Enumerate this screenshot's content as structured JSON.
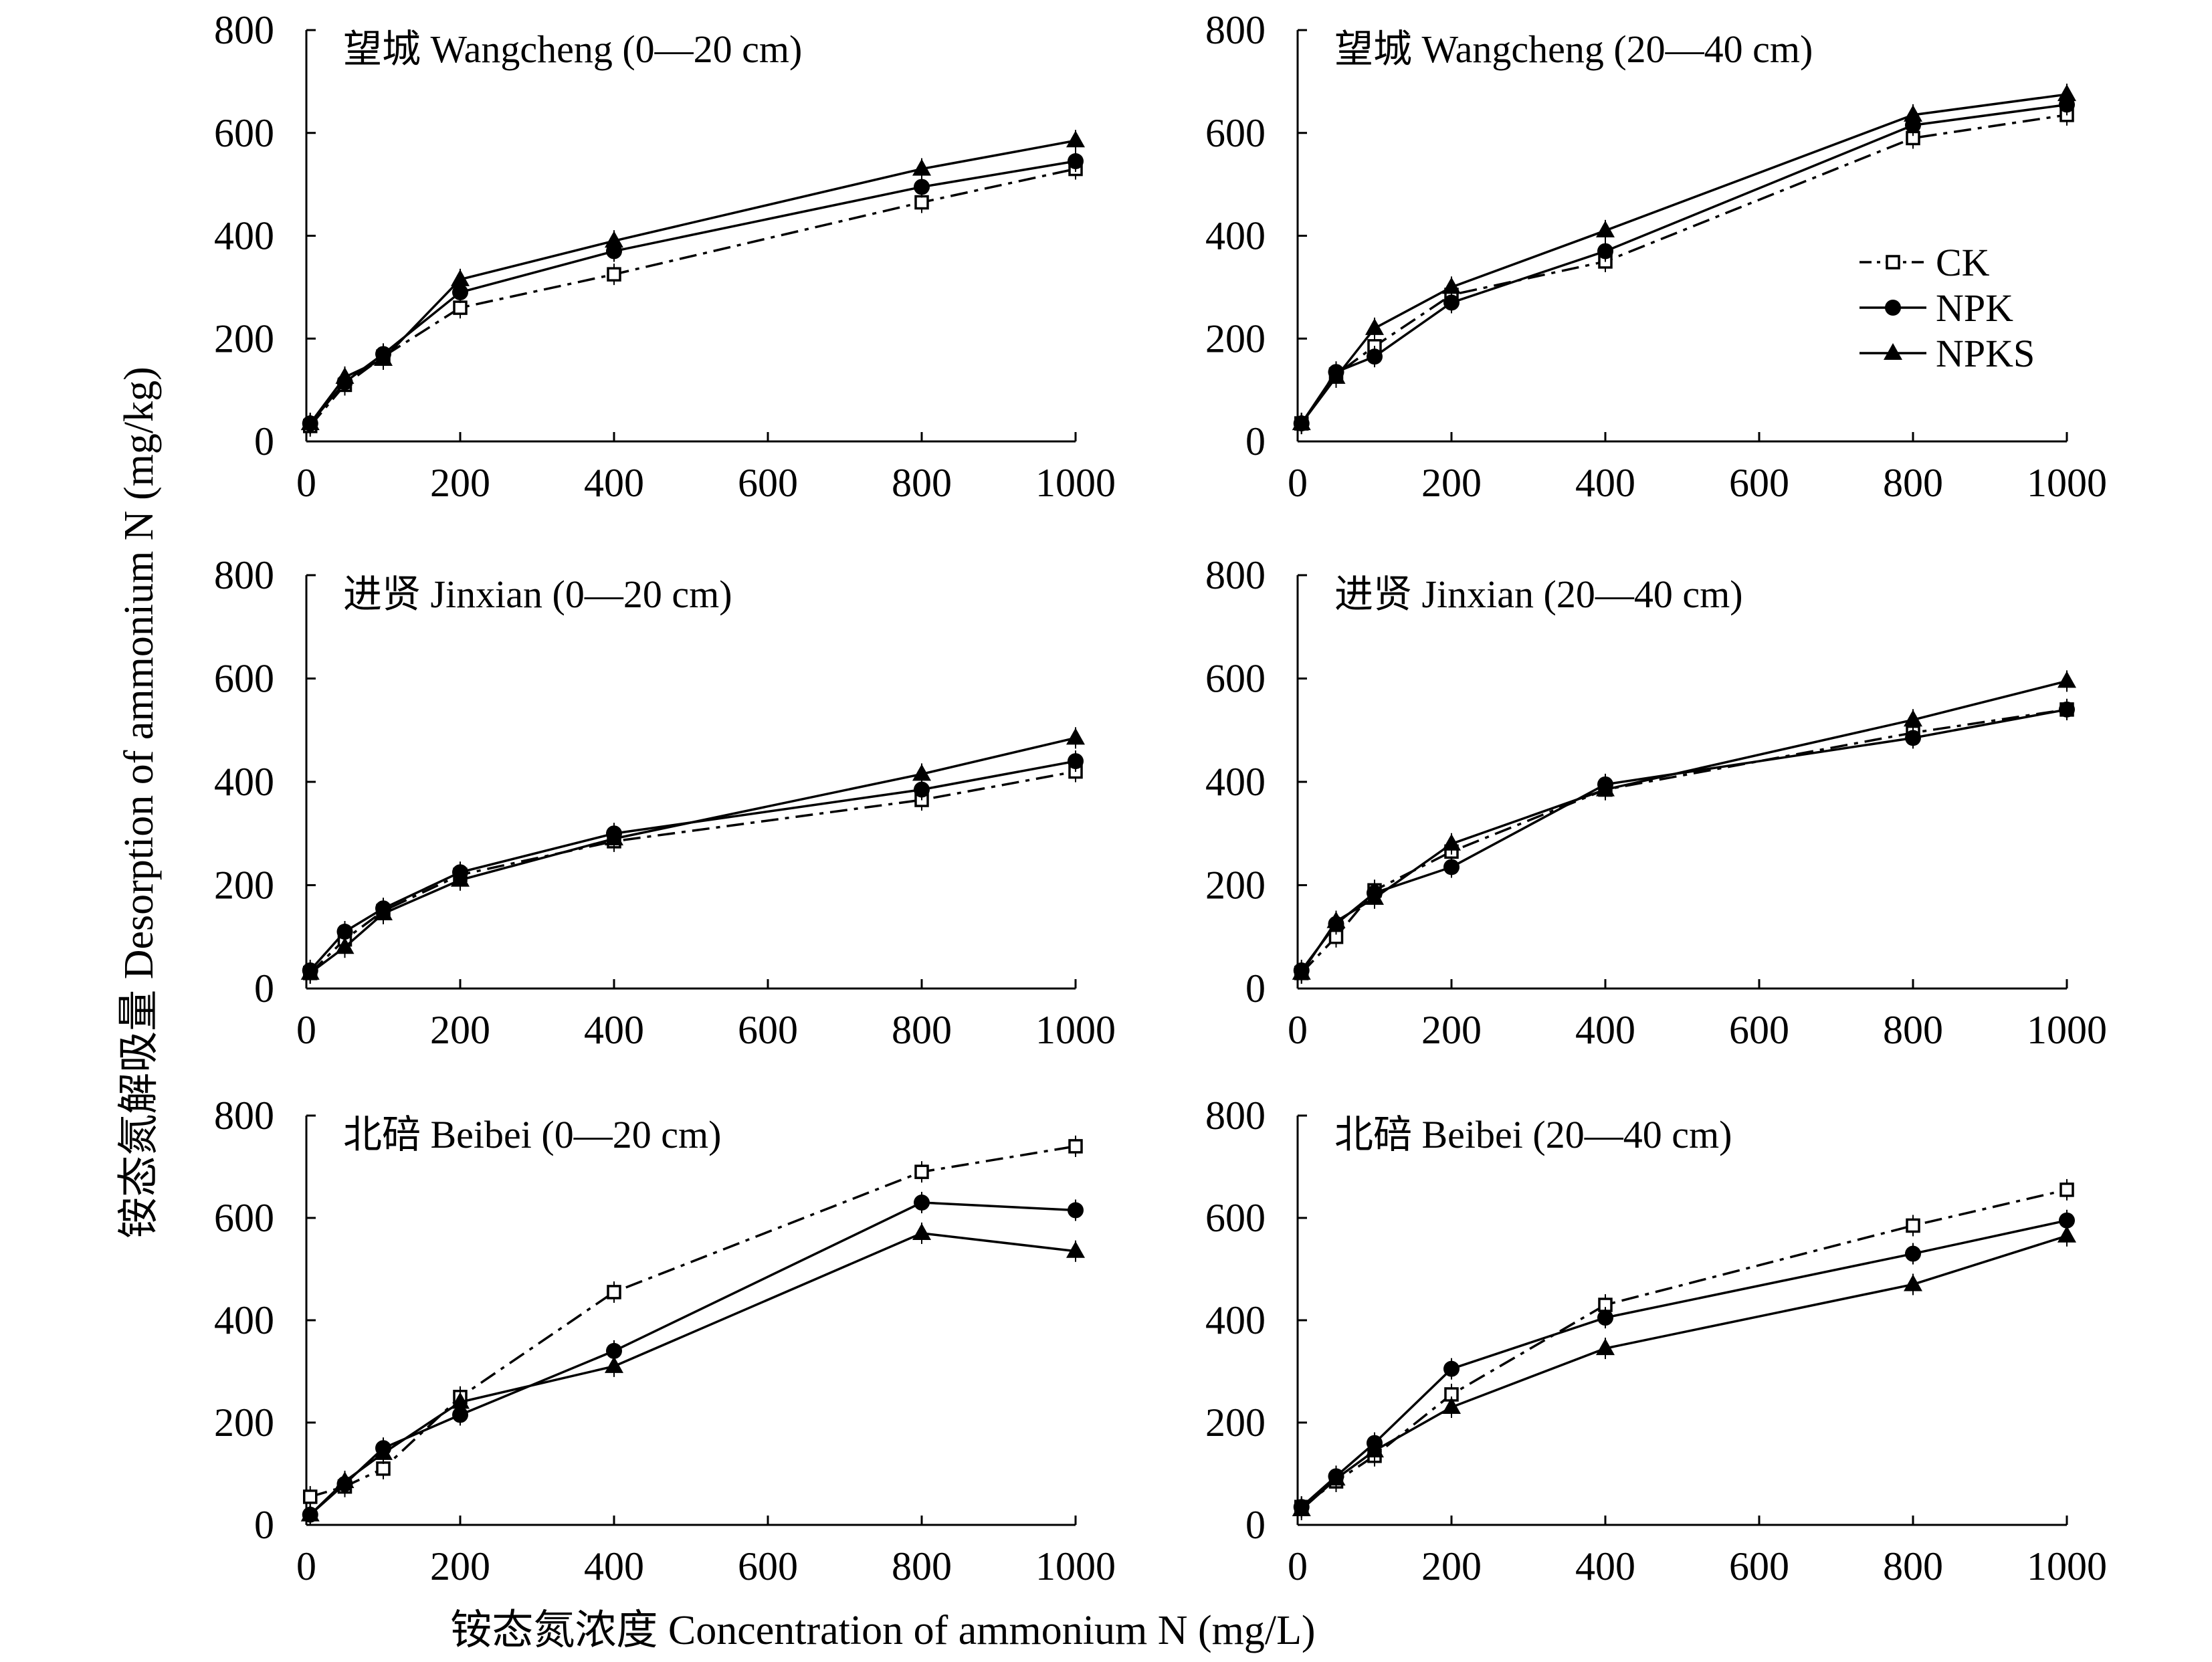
{
  "figure": {
    "ylabel": "铵态氮解吸量 Desorption of ammonium N (mg/kg)",
    "xlabel": "铵态氮浓度 Concentration of ammonium N (mg/L)"
  },
  "legend": [
    {
      "name": "CK",
      "marker": "square-open",
      "line": "dashdot"
    },
    {
      "name": "NPK",
      "marker": "circle-filled",
      "line": "solid"
    },
    {
      "name": "NPKS",
      "marker": "triangle-filled",
      "line": "solid"
    }
  ],
  "colors": {
    "ink": "#000000",
    "background": "#ffffff"
  },
  "chart_data": [
    {
      "type": "line",
      "title": "望城 Wangcheng (0—20 cm)",
      "x": [
        5,
        50,
        100,
        200,
        400,
        800,
        1000
      ],
      "xticks": [
        "0",
        "200",
        "400",
        "600",
        "800",
        "1000"
      ],
      "yticks": [
        "0",
        "200",
        "400",
        "600",
        "800"
      ],
      "xlim": [
        0,
        1000
      ],
      "ylim": [
        0,
        800
      ],
      "series": [
        {
          "name": "CK",
          "values": [
            30,
            110,
            165,
            260,
            325,
            465,
            530
          ]
        },
        {
          "name": "NPK",
          "values": [
            35,
            115,
            170,
            290,
            370,
            495,
            545
          ]
        },
        {
          "name": "NPKS",
          "values": [
            35,
            125,
            160,
            315,
            390,
            530,
            585
          ]
        }
      ]
    },
    {
      "type": "line",
      "title": "望城 Wangcheng (20—40 cm)",
      "x": [
        5,
        50,
        100,
        200,
        400,
        800,
        1000
      ],
      "xticks": [
        "0",
        "200",
        "400",
        "600",
        "800",
        "1000"
      ],
      "yticks": [
        "0",
        "200",
        "400",
        "600",
        "800"
      ],
      "xlim": [
        0,
        1000
      ],
      "ylim": [
        0,
        800
      ],
      "series": [
        {
          "name": "CK",
          "values": [
            35,
            130,
            185,
            285,
            350,
            590,
            635
          ]
        },
        {
          "name": "NPK",
          "values": [
            35,
            135,
            165,
            270,
            370,
            615,
            655
          ]
        },
        {
          "name": "NPKS",
          "values": [
            35,
            125,
            220,
            300,
            410,
            635,
            675
          ]
        }
      ]
    },
    {
      "type": "line",
      "title": "进贤 Jinxian (0—20 cm)",
      "x": [
        5,
        50,
        100,
        200,
        400,
        800,
        1000
      ],
      "xticks": [
        "0",
        "200",
        "400",
        "600",
        "800",
        "1000"
      ],
      "yticks": [
        "0",
        "200",
        "400",
        "600",
        "800"
      ],
      "xlim": [
        0,
        1000
      ],
      "ylim": [
        0,
        800
      ],
      "series": [
        {
          "name": "CK",
          "values": [
            30,
            95,
            150,
            220,
            285,
            365,
            420
          ]
        },
        {
          "name": "NPK",
          "values": [
            35,
            110,
            155,
            225,
            300,
            385,
            440
          ]
        },
        {
          "name": "NPKS",
          "values": [
            30,
            80,
            145,
            210,
            290,
            415,
            485
          ]
        }
      ]
    },
    {
      "type": "line",
      "title": "进贤 Jinxian (20—40 cm)",
      "x": [
        5,
        50,
        100,
        200,
        400,
        800,
        1000
      ],
      "xticks": [
        "0",
        "200",
        "400",
        "600",
        "800",
        "1000"
      ],
      "yticks": [
        "0",
        "200",
        "400",
        "600",
        "800"
      ],
      "xlim": [
        0,
        1000
      ],
      "ylim": [
        0,
        800
      ],
      "series": [
        {
          "name": "CK",
          "values": [
            30,
            100,
            190,
            265,
            385,
            495,
            540
          ]
        },
        {
          "name": "NPK",
          "values": [
            35,
            125,
            185,
            235,
            395,
            485,
            540
          ]
        },
        {
          "name": "NPKS",
          "values": [
            30,
            130,
            175,
            280,
            385,
            520,
            595
          ]
        }
      ]
    },
    {
      "type": "line",
      "title": "北碚 Beibei (0—20 cm)",
      "x": [
        5,
        50,
        100,
        200,
        400,
        800,
        1000
      ],
      "xticks": [
        "0",
        "200",
        "400",
        "600",
        "800",
        "1000"
      ],
      "yticks": [
        "0",
        "200",
        "400",
        "600",
        "800"
      ],
      "xlim": [
        0,
        1000
      ],
      "ylim": [
        0,
        800
      ],
      "series": [
        {
          "name": "CK",
          "values": [
            55,
            75,
            110,
            250,
            455,
            690,
            740
          ]
        },
        {
          "name": "NPK",
          "values": [
            20,
            80,
            150,
            215,
            340,
            630,
            615
          ]
        },
        {
          "name": "NPKS",
          "values": [
            20,
            85,
            140,
            240,
            310,
            570,
            535
          ]
        }
      ]
    },
    {
      "type": "line",
      "title": "北碚 Beibei (20—40 cm)",
      "x": [
        5,
        50,
        100,
        200,
        400,
        800,
        1000
      ],
      "xticks": [
        "0",
        "200",
        "400",
        "600",
        "800",
        "1000"
      ],
      "yticks": [
        "0",
        "200",
        "400",
        "600",
        "800"
      ],
      "xlim": [
        0,
        1000
      ],
      "ylim": [
        0,
        800
      ],
      "series": [
        {
          "name": "CK",
          "values": [
            35,
            85,
            135,
            255,
            430,
            585,
            655
          ]
        },
        {
          "name": "NPK",
          "values": [
            35,
            95,
            160,
            305,
            405,
            530,
            595
          ]
        },
        {
          "name": "NPKS",
          "values": [
            30,
            90,
            145,
            230,
            345,
            470,
            565
          ]
        }
      ]
    }
  ]
}
